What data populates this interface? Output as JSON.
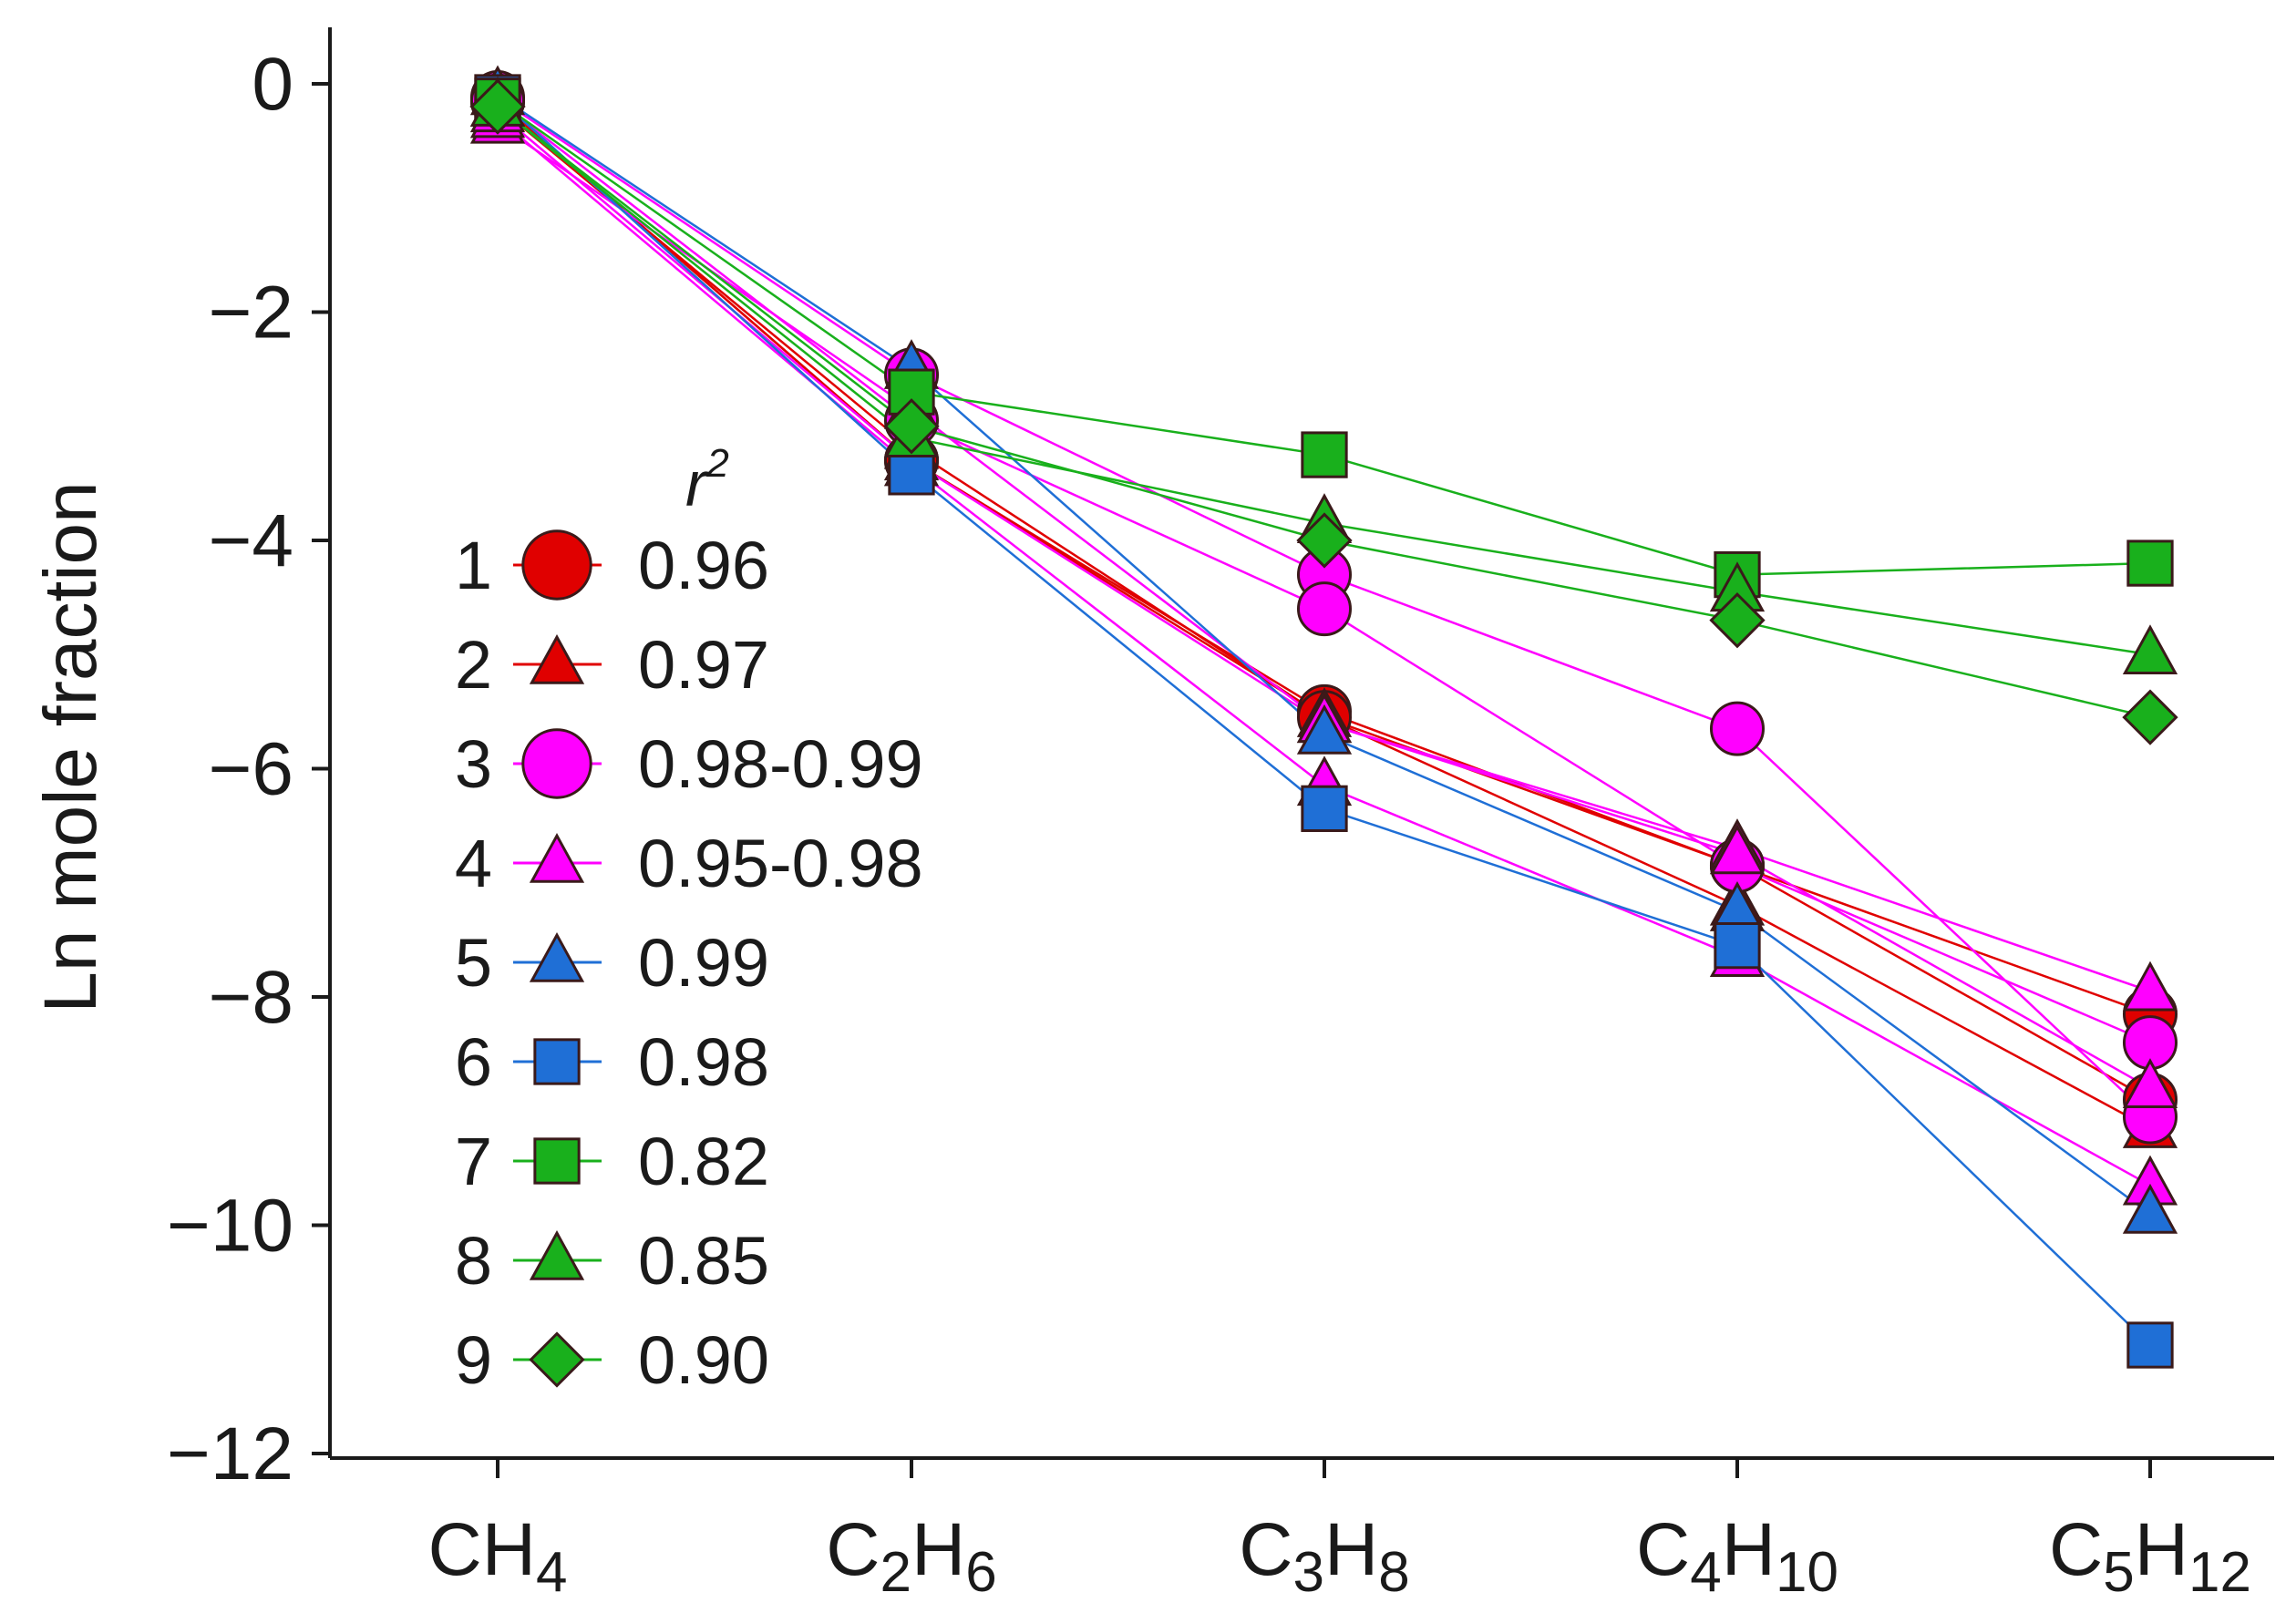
{
  "chart_data": {
    "type": "line",
    "title": "",
    "xlabel": "",
    "ylabel": "Ln mole fraction",
    "ylim": [
      -12,
      0.5
    ],
    "yticks": [
      0,
      -2,
      -4,
      -6,
      -8,
      -10,
      -12
    ],
    "ytick_labels": [
      "0",
      "−2",
      "−4",
      "−6",
      "−8",
      "−10",
      "−12"
    ],
    "categories": [
      {
        "base1": "C",
        "base2": "H",
        "sub1": "",
        "sub2": "4"
      },
      {
        "base1": "C",
        "base2": "H",
        "sub1": "2",
        "sub2": "6"
      },
      {
        "base1": "C",
        "base2": "H",
        "sub1": "3",
        "sub2": "8"
      },
      {
        "base1": "C",
        "base2": "H",
        "sub1": "4",
        "sub2": "10"
      },
      {
        "base1": "C",
        "base2": "H",
        "sub1": "5",
        "sub2": "12"
      }
    ],
    "legend": {
      "title_base": "r",
      "title_sup": "2",
      "position": "center-left",
      "entries": [
        {
          "num": "1",
          "value": "0.96",
          "marker": "circle",
          "color": "#e00000"
        },
        {
          "num": "2",
          "value": "0.97",
          "marker": "triangle",
          "color": "#e00000"
        },
        {
          "num": "3",
          "value": "0.98-0.99",
          "marker": "circle",
          "color": "#ff00ff"
        },
        {
          "num": "4",
          "value": "0.95-0.98",
          "marker": "triangle",
          "color": "#ff00ff"
        },
        {
          "num": "5",
          "value": "0.99",
          "marker": "triangle",
          "color": "#1f6fd6"
        },
        {
          "num": "6",
          "value": "0.98",
          "marker": "square",
          "color": "#1f6fd6"
        },
        {
          "num": "7",
          "value": "0.82",
          "marker": "square",
          "color": "#19b01c"
        },
        {
          "num": "8",
          "value": "0.85",
          "marker": "triangle",
          "color": "#19b01c"
        },
        {
          "num": "9",
          "value": "0.90",
          "marker": "diamond",
          "color": "#19b01c"
        }
      ]
    },
    "series": [
      {
        "name": "1",
        "marker": "circle",
        "color": "#e00000",
        "values": [
          -0.15,
          -3.3,
          -5.5,
          -6.85,
          -8.15
        ]
      },
      {
        "name": "1",
        "marker": "circle",
        "color": "#e00000",
        "values": [
          -0.15,
          -3.3,
          -5.55,
          -6.85,
          -8.9
        ]
      },
      {
        "name": "2",
        "marker": "triangle",
        "color": "#e00000",
        "values": [
          -0.2,
          -3.2,
          -5.55,
          -7.2,
          -9.15
        ]
      },
      {
        "name": "3",
        "marker": "circle",
        "color": "#ff00ff",
        "values": [
          -0.12,
          -2.55,
          -4.3,
          -5.65,
          -9.05
        ]
      },
      {
        "name": "3",
        "marker": "circle",
        "color": "#ff00ff",
        "values": [
          -0.15,
          -2.95,
          -4.6,
          -6.85,
          -8.4
        ]
      },
      {
        "name": "4",
        "marker": "triangle",
        "color": "#ff00ff",
        "values": [
          -0.35,
          -2.85,
          -5.6,
          -6.7,
          -7.95
        ]
      },
      {
        "name": "4",
        "marker": "triangle",
        "color": "#ff00ff",
        "values": [
          -0.3,
          -3.35,
          -6.15,
          -7.65,
          -9.65
        ]
      },
      {
        "name": "4",
        "marker": "triangle",
        "color": "#ff00ff",
        "values": [
          -0.25,
          -3.3,
          -5.6,
          -6.75,
          -8.8
        ]
      },
      {
        "name": "5",
        "marker": "triangle",
        "color": "#1f6fd6",
        "values": [
          -0.1,
          -2.5,
          -5.7,
          -7.25,
          -9.9
        ]
      },
      {
        "name": "6",
        "marker": "square",
        "color": "#1f6fd6",
        "values": [
          -0.12,
          -3.4,
          -6.35,
          -7.55,
          -11.05
        ]
      },
      {
        "name": "7",
        "marker": "square",
        "color": "#19b01c",
        "values": [
          -0.15,
          -2.7,
          -3.25,
          -4.3,
          -4.2
        ]
      },
      {
        "name": "8",
        "marker": "triangle",
        "color": "#19b01c",
        "values": [
          -0.2,
          -3.1,
          -3.85,
          -4.45,
          -5.0
        ]
      },
      {
        "name": "9",
        "marker": "diamond",
        "color": "#19b01c",
        "values": [
          -0.2,
          -3.0,
          -4.0,
          -4.7,
          -5.55
        ]
      }
    ]
  }
}
